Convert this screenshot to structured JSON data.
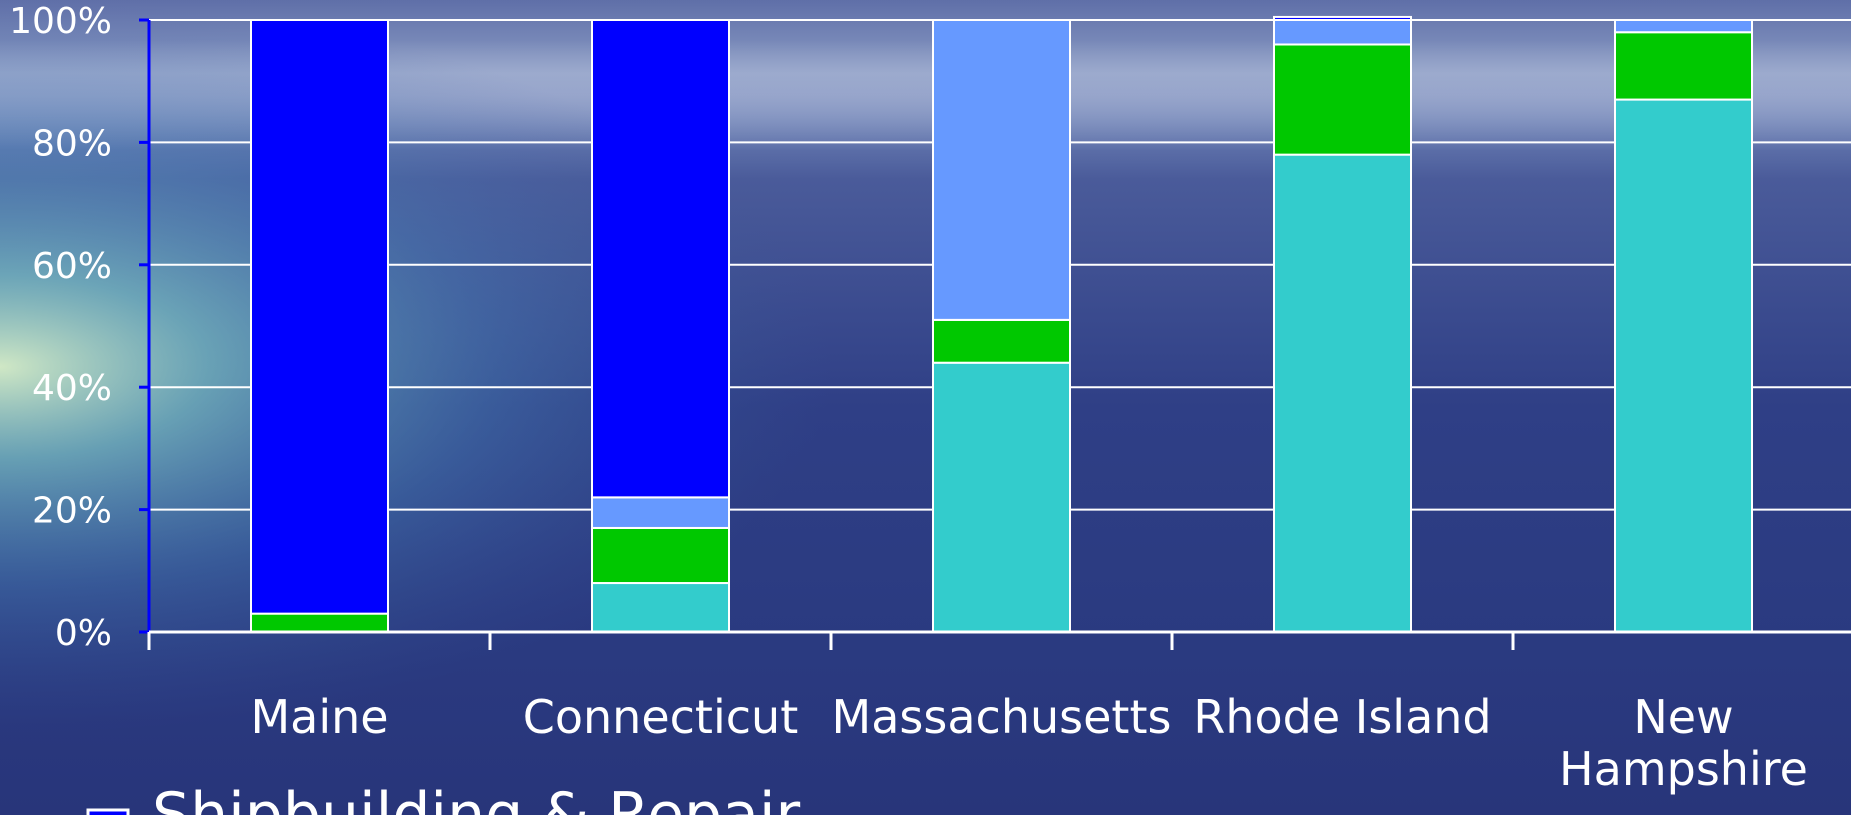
{
  "chart_data": {
    "type": "bar",
    "stacked": true,
    "percent": true,
    "categories": [
      "Maine",
      "Connecticut",
      "Massachusetts",
      "Rhode Island",
      "New Hampshire"
    ],
    "category_lines": [
      [
        "Maine"
      ],
      [
        "Connecticut"
      ],
      [
        "Massachusetts"
      ],
      [
        "Rhode Island"
      ],
      [
        "New",
        "Hampshire"
      ]
    ],
    "series": [
      {
        "values": [
          0,
          8,
          44,
          78,
          87
        ],
        "color": "#33cccc"
      },
      {
        "values": [
          3,
          9,
          7,
          18,
          11
        ],
        "color": "#00c800"
      },
      {
        "values": [
          0,
          5,
          49,
          4,
          2
        ],
        "color": "#6699ff"
      },
      {
        "name": "Shipbuilding & Repair",
        "values": [
          97,
          78,
          0,
          0.5,
          0
        ],
        "color": "#0000ff"
      }
    ],
    "y_ticks": [
      "0%",
      "20%",
      "40%",
      "60%",
      "80%",
      "100%"
    ],
    "ylim": [
      0,
      100
    ],
    "grid": true,
    "legend_position": "bottom-left (partially visible)"
  },
  "legend_visible": {
    "label": "Shipbuilding & Repair",
    "color": "#0000ff"
  },
  "theme": {
    "grid_color": "#ffffff",
    "axis_color": "#0000ff",
    "segment_border": "#ffffff"
  }
}
